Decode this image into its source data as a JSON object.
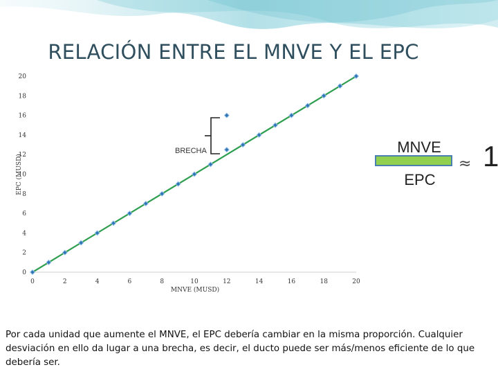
{
  "slide": {
    "title": "RELACIÓN ENTRE EL MNVE  Y EL EPC",
    "footnote": "Por cada unidad que aumente el MNVE, el EPC debería cambiar en la misma proporción. Cualquier desviación en ello da lugar a una brecha, es decir, el ducto puede ser  más/menos eficiente de lo que debería ser."
  },
  "ratio_box": {
    "numerator": "MNVE",
    "denominator": "EPC",
    "approx_symbol": "≈",
    "value": "1",
    "bar_color": "#92d050"
  },
  "chart_data": {
    "type": "scatter",
    "title": "",
    "xlabel": "MNVE (MUSD)",
    "ylabel": "EPC (MUSD)",
    "xlim": [
      0,
      20
    ],
    "ylim": [
      0,
      20
    ],
    "xticks": [
      "0",
      "2",
      "4",
      "6",
      "8",
      "10",
      "12",
      "14",
      "16",
      "18",
      "20"
    ],
    "yticks": [
      "0",
      "2",
      "4",
      "6",
      "8",
      "10",
      "12",
      "14",
      "16",
      "18",
      "20"
    ],
    "grid": false,
    "annotation": "BRECHA",
    "colors": {
      "points": "#2e75b6",
      "fit_line": "#2e9e4f"
    },
    "series": [
      {
        "points": [
          [
            0,
            0
          ],
          [
            1,
            1
          ],
          [
            2,
            2
          ],
          [
            3,
            3
          ],
          [
            4,
            4
          ],
          [
            5,
            5
          ],
          [
            6,
            6
          ],
          [
            7,
            7
          ],
          [
            8,
            8
          ],
          [
            9,
            9
          ],
          [
            10,
            10
          ],
          [
            11,
            11
          ],
          [
            12,
            12.5
          ],
          [
            12,
            16
          ],
          [
            13,
            13
          ],
          [
            14,
            14
          ],
          [
            15,
            15
          ],
          [
            16,
            16
          ],
          [
            17,
            17
          ],
          [
            18,
            18
          ],
          [
            19,
            19
          ],
          [
            20,
            20
          ]
        ]
      }
    ],
    "fit_line": {
      "from": [
        0,
        0
      ],
      "to": [
        20,
        20
      ]
    }
  }
}
